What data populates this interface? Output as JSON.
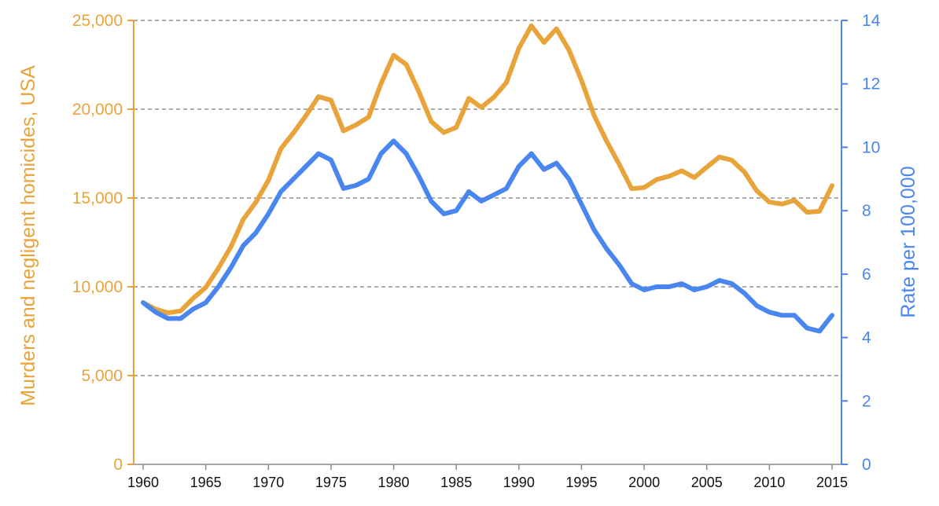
{
  "chart_data": {
    "type": "line",
    "title": "",
    "xlabel": "",
    "ylabel_left": "Murders and negligent homicides, USA",
    "ylabel_right": "Rate per 100,000",
    "xlim": [
      1960,
      2015
    ],
    "ylim_left": [
      0,
      25000
    ],
    "ylim_right": [
      0,
      14
    ],
    "x_ticks": [
      "1960",
      "1965",
      "1970",
      "1975",
      "1980",
      "1985",
      "1990",
      "1995",
      "2000",
      "2005",
      "2010",
      "2015"
    ],
    "y_ticks_left": [
      "0",
      "5,000",
      "10,000",
      "15,000",
      "20,000",
      "25,000"
    ],
    "y_ticks_right": [
      "0",
      "2",
      "4",
      "6",
      "8",
      "10",
      "12",
      "14"
    ],
    "grid": "horizontal dashed",
    "colors": {
      "count": "#E8A43A",
      "rate": "#4A86F0"
    },
    "x": [
      1960,
      1961,
      1962,
      1963,
      1964,
      1965,
      1966,
      1967,
      1968,
      1969,
      1970,
      1971,
      1972,
      1973,
      1974,
      1975,
      1976,
      1977,
      1978,
      1979,
      1980,
      1981,
      1982,
      1983,
      1984,
      1985,
      1986,
      1987,
      1988,
      1989,
      1990,
      1991,
      1992,
      1993,
      1994,
      1995,
      1996,
      1997,
      1998,
      1999,
      2000,
      2001,
      2002,
      2003,
      2004,
      2005,
      2006,
      2007,
      2008,
      2009,
      2010,
      2011,
      2012,
      2013,
      2014,
      2015
    ],
    "series": [
      {
        "axis": "left",
        "values": [
          9110,
          8740,
          8530,
          8640,
          9360,
          9960,
          11040,
          12240,
          13800,
          14760,
          16000,
          17780,
          18670,
          19640,
          20710,
          20510,
          18780,
          19120,
          19560,
          21460,
          23040,
          22520,
          21010,
          19310,
          18690,
          18980,
          20610,
          20100,
          20680,
          21500,
          23440,
          24700,
          23760,
          24530,
          23330,
          21610,
          19650,
          18210,
          16910,
          15520,
          15590,
          16040,
          16230,
          16530,
          16150,
          16740,
          17310,
          17130,
          16470,
          15400,
          14770,
          14660,
          14870,
          14200,
          14250,
          15700
        ]
      },
      {
        "axis": "right",
        "values": [
          5.1,
          4.8,
          4.6,
          4.6,
          4.9,
          5.1,
          5.6,
          6.2,
          6.9,
          7.3,
          7.9,
          8.6,
          9.0,
          9.4,
          9.8,
          9.6,
          8.7,
          8.8,
          9.0,
          9.8,
          10.2,
          9.8,
          9.1,
          8.3,
          7.9,
          8.0,
          8.6,
          8.3,
          8.5,
          8.7,
          9.4,
          9.8,
          9.3,
          9.5,
          9.0,
          8.2,
          7.4,
          6.8,
          6.3,
          5.7,
          5.5,
          5.6,
          5.6,
          5.7,
          5.5,
          5.6,
          5.8,
          5.7,
          5.4,
          5.0,
          4.8,
          4.7,
          4.7,
          4.3,
          4.2,
          4.7
        ]
      }
    ]
  }
}
